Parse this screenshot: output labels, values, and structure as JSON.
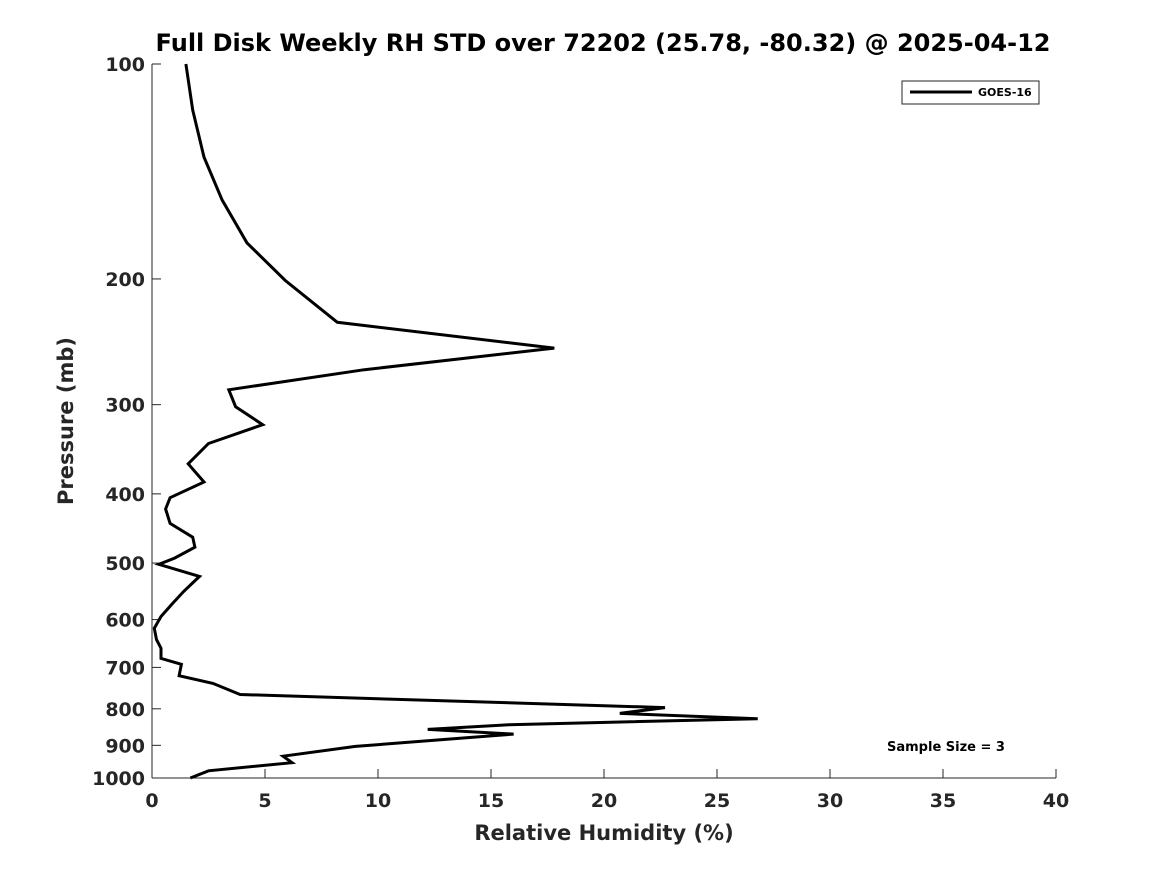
{
  "chart_data": {
    "type": "line",
    "title": "Full Disk Weekly RH STD over 72202 (25.78, -80.32) @ 2025-04-12",
    "xlabel": "Relative Humidity (%)",
    "ylabel": "Pressure (mb)",
    "xlim": [
      0,
      40
    ],
    "ylim": [
      100,
      1000
    ],
    "y_scale": "log",
    "y_reversed": true,
    "x_ticks": [
      0,
      5,
      10,
      15,
      20,
      25,
      30,
      35,
      40
    ],
    "x_tick_labels": [
      "0",
      "5",
      "10",
      "15",
      "20",
      "25",
      "30",
      "35",
      "40"
    ],
    "y_ticks": [
      100,
      200,
      300,
      400,
      500,
      600,
      700,
      800,
      900,
      1000
    ],
    "y_tick_labels": [
      "100",
      "200",
      "300",
      "400",
      "500",
      "600",
      "700",
      "800",
      "900",
      "1000"
    ],
    "grid": false,
    "legend_position": "top-right",
    "series": [
      {
        "name": "GOES-16",
        "color": "#000000",
        "points": [
          [
            1.5,
            100
          ],
          [
            1.8,
            116
          ],
          [
            2.3,
            135
          ],
          [
            3.1,
            155
          ],
          [
            4.2,
            178
          ],
          [
            5.9,
            201
          ],
          [
            8.2,
            230
          ],
          [
            17.8,
            250
          ],
          [
            9.4,
            268
          ],
          [
            3.4,
            286
          ],
          [
            3.7,
            302
          ],
          [
            4.9,
            320
          ],
          [
            2.5,
            340
          ],
          [
            1.6,
            363
          ],
          [
            2.3,
            385
          ],
          [
            0.8,
            405
          ],
          [
            0.6,
            420
          ],
          [
            0.8,
            440
          ],
          [
            1.8,
            460
          ],
          [
            1.9,
            475
          ],
          [
            1.0,
            492
          ],
          [
            0.3,
            502
          ],
          [
            2.1,
            522
          ],
          [
            1.4,
            548
          ],
          [
            0.9,
            570
          ],
          [
            0.4,
            594
          ],
          [
            0.1,
            617
          ],
          [
            0.2,
            640
          ],
          [
            0.4,
            658
          ],
          [
            0.4,
            680
          ],
          [
            1.3,
            693
          ],
          [
            1.2,
            719
          ],
          [
            2.7,
            737
          ],
          [
            3.9,
            764
          ],
          [
            22.7,
            797
          ],
          [
            20.7,
            812
          ],
          [
            26.8,
            826
          ],
          [
            15.8,
            842
          ],
          [
            12.2,
            855
          ],
          [
            16.0,
            868
          ],
          [
            14.2,
            877
          ],
          [
            9.0,
            903
          ],
          [
            5.8,
            932
          ],
          [
            6.2,
            952
          ],
          [
            2.5,
            977
          ],
          [
            1.7,
            1000
          ]
        ]
      }
    ],
    "annotations": [
      "Sample Size = 3"
    ]
  },
  "legend": {
    "entries": [
      "GOES-16"
    ]
  },
  "annotation": {
    "sample_size": "Sample Size = 3"
  }
}
